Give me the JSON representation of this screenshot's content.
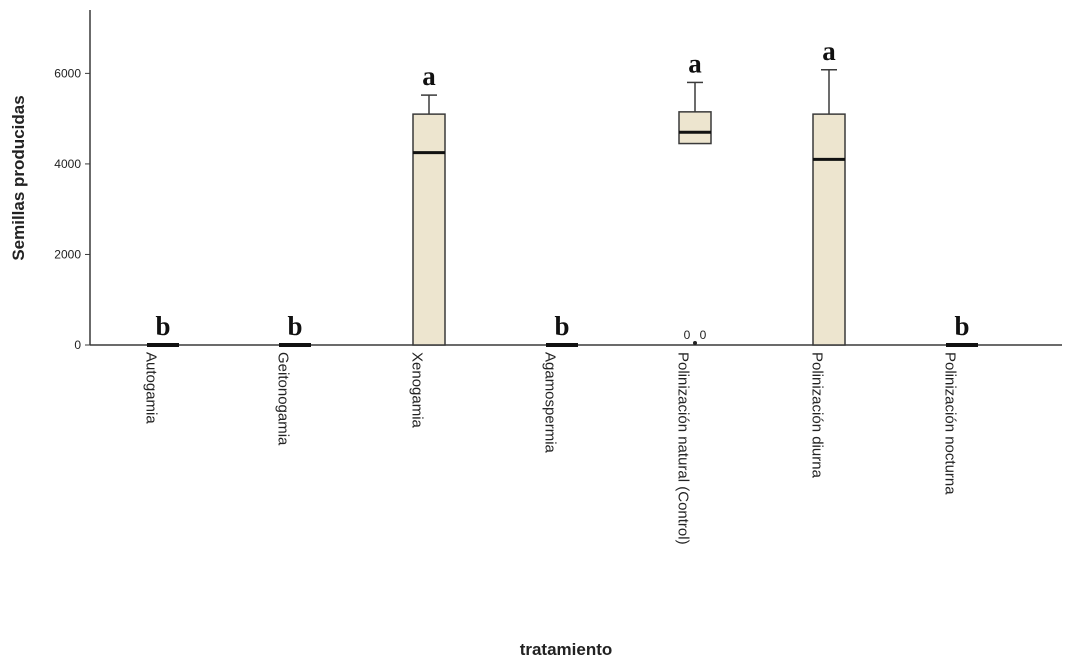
{
  "chart_data": {
    "type": "boxplot",
    "xlabel": "tratamiento",
    "ylabel": "Semillas producidas",
    "ylim": [
      0,
      7400
    ],
    "yticks": [
      0,
      2000,
      4000,
      6000
    ],
    "grid": false,
    "categories": [
      "Autogamia",
      "Geitonogamia",
      "Xenogamia",
      "Agamospermia",
      "Polinización natural (Control)",
      "Polinización diurna",
      "Polinización nocturna"
    ],
    "boxes": [
      {
        "category": "Autogamia",
        "min": 0,
        "q1": 0,
        "median": 0,
        "q3": 0,
        "max": 0,
        "letter": "b"
      },
      {
        "category": "Geitonogamia",
        "min": 0,
        "q1": 0,
        "median": 0,
        "q3": 0,
        "max": 0,
        "letter": "b"
      },
      {
        "category": "Xenogamia",
        "min": 0,
        "q1": 0,
        "median": 4250,
        "q3": 5100,
        "max": 5520,
        "letter": "a"
      },
      {
        "category": "Agamospermia",
        "min": 0,
        "q1": 0,
        "median": 0,
        "q3": 0,
        "max": 0,
        "letter": "b"
      },
      {
        "category": "Polinización natural (Control)",
        "min": 4450,
        "q1": 4450,
        "median": 4700,
        "q3": 5150,
        "max": 5800,
        "letter": "a",
        "outliers": [
          {
            "value": 0,
            "labels": [
              "0",
              "0"
            ]
          }
        ]
      },
      {
        "category": "Polinización diurna",
        "min": 0,
        "q1": 0,
        "median": 4100,
        "q3": 5100,
        "max": 6080,
        "letter": "a"
      },
      {
        "category": "Polinización nocturna",
        "min": 0,
        "q1": 0,
        "median": 0,
        "q3": 0,
        "max": 0,
        "letter": "b"
      }
    ],
    "colors": {
      "box_fill": "#ede5cf",
      "line": "#3a3a3a"
    }
  }
}
